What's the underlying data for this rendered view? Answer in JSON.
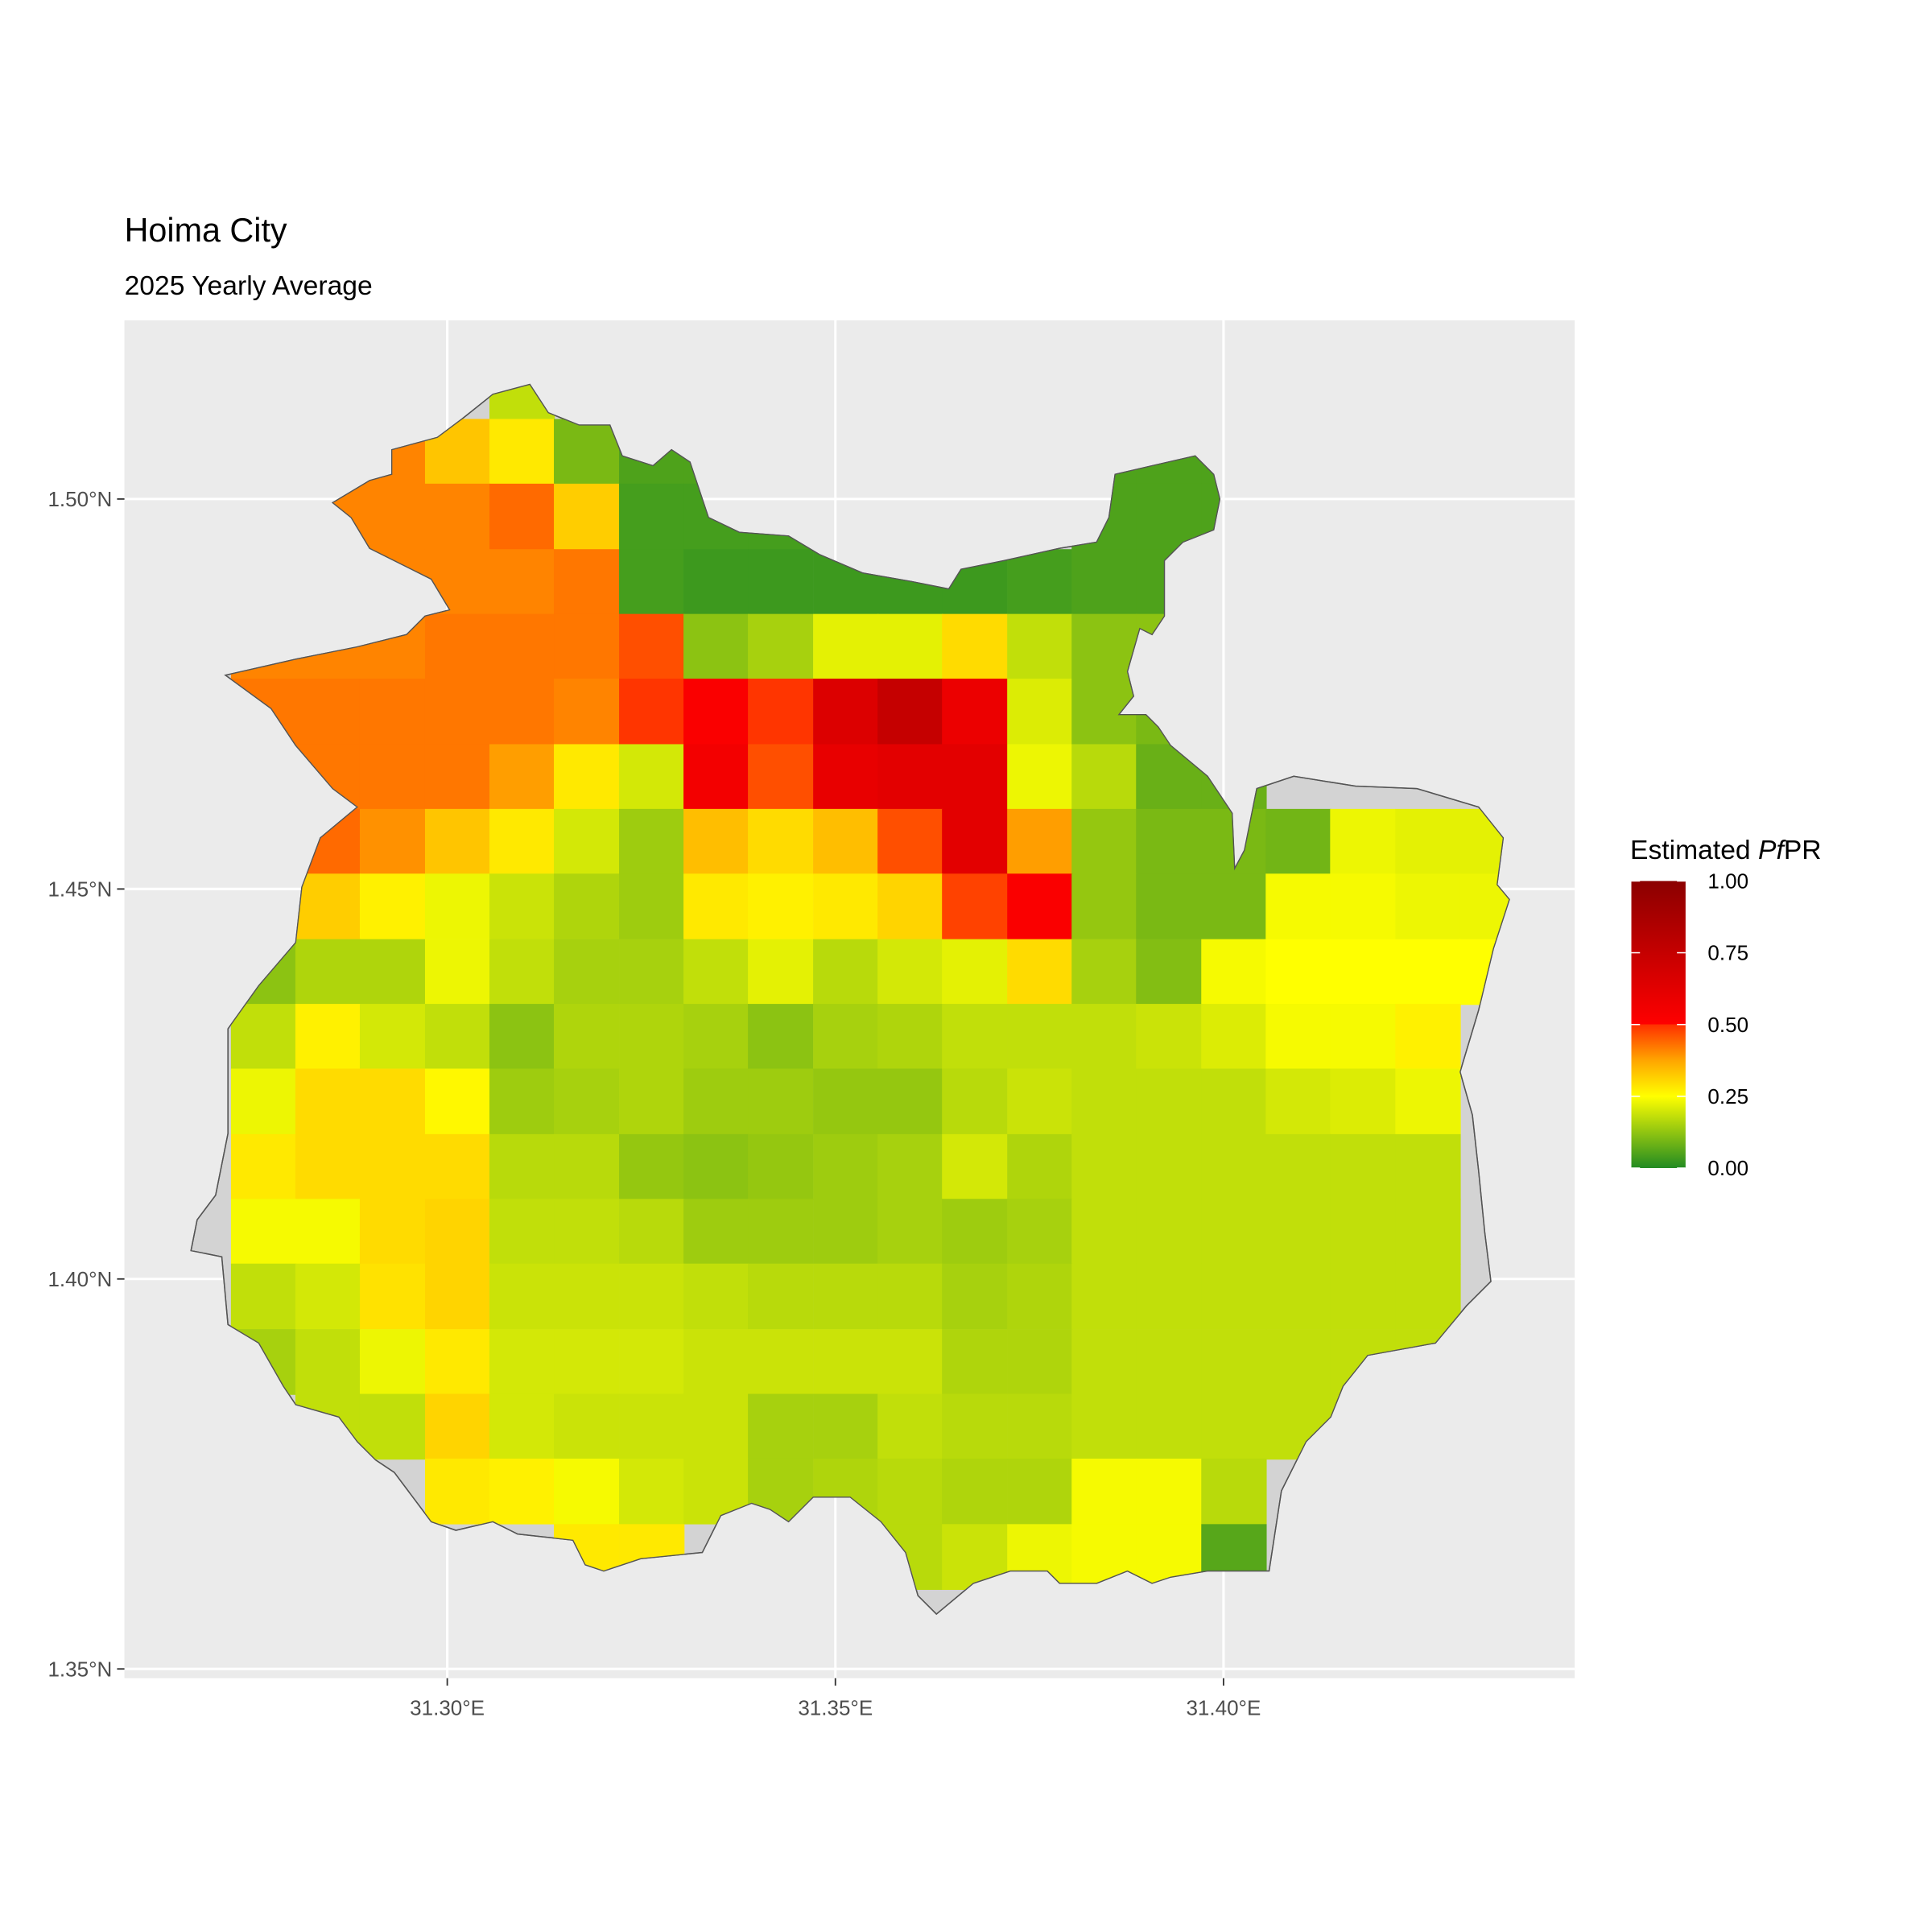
{
  "title": "Hoima City",
  "subtitle": "2025 Yearly Average",
  "legend": {
    "title_prefix": "Estimated ",
    "title_italic": "Pf",
    "title_suffix": "PR",
    "labels": [
      "1.00",
      "0.75",
      "0.50",
      "0.25",
      "0.00"
    ],
    "values": [
      1.0,
      0.75,
      0.5,
      0.25,
      0.0
    ],
    "colors": {
      "0": "#228B22",
      "0.25": "#FFFF00",
      "0.375": "#FFA500",
      "0.5": "#FF0000",
      "1": "#8B0000"
    }
  },
  "axes": {
    "x_ticks": [
      {
        "value": 31.3,
        "label": "31.30°E"
      },
      {
        "value": 31.35,
        "label": "31.35°E"
      },
      {
        "value": 31.4,
        "label": "31.40°E"
      }
    ],
    "y_ticks": [
      {
        "value": 1.5,
        "label": "1.50°N"
      },
      {
        "value": 1.45,
        "label": "1.45°N"
      },
      {
        "value": 1.4,
        "label": "1.40°N"
      },
      {
        "value": 1.35,
        "label": "1.35°N"
      }
    ],
    "panel_background": "#EBEBEB",
    "grid": true
  },
  "chart_data": {
    "type": "heatmap",
    "lon_centers": [
      31.2763,
      31.2846,
      31.2929,
      31.3013,
      31.3096,
      31.3179,
      31.3263,
      31.3346,
      31.3429,
      31.3513,
      31.3596,
      31.3679,
      31.3763,
      31.3846,
      31.3929,
      31.4013,
      31.4096,
      31.4179,
      31.4263,
      31.4346
    ],
    "lat_centers": [
      1.5144,
      1.5061,
      1.4978,
      1.4894,
      1.4811,
      1.4728,
      1.4644,
      1.4561,
      1.4478,
      1.4394,
      1.4311,
      1.4228,
      1.4144,
      1.4061,
      1.3978,
      1.3894,
      1.3811,
      1.3728,
      1.3644
    ],
    "values": [
      [
        null,
        null,
        null,
        null,
        0.18,
        null,
        null,
        null,
        null,
        null,
        null,
        null,
        null,
        null,
        null,
        null,
        null,
        null,
        null,
        null
      ],
      [
        null,
        null,
        0.4,
        0.33,
        0.28,
        0.1,
        0.05,
        0.05,
        null,
        null,
        null,
        null,
        null,
        0.05,
        0.05,
        0.05,
        null,
        null,
        null,
        null
      ],
      [
        null,
        0.4,
        0.4,
        0.4,
        0.42,
        0.32,
        0.04,
        0.04,
        0.04,
        null,
        null,
        null,
        null,
        0.05,
        0.05,
        0.05,
        null,
        null,
        null,
        null
      ],
      [
        null,
        0.4,
        0.4,
        0.4,
        0.4,
        0.41,
        0.04,
        0.03,
        0.03,
        0.03,
        0.03,
        0.03,
        0.04,
        0.05,
        0.05,
        null,
        null,
        null,
        null,
        null
      ],
      [
        0.4,
        0.4,
        0.4,
        0.41,
        0.41,
        0.41,
        0.44,
        0.12,
        0.15,
        0.22,
        0.22,
        0.3,
        0.18,
        0.12,
        0.12,
        null,
        null,
        null,
        null,
        null
      ],
      [
        0.41,
        0.41,
        0.41,
        0.41,
        0.41,
        0.4,
        0.46,
        0.52,
        0.46,
        0.65,
        0.75,
        0.58,
        0.21,
        0.12,
        0.1,
        null,
        null,
        null,
        null,
        null
      ],
      [
        null,
        0.41,
        0.41,
        0.41,
        0.38,
        0.28,
        0.2,
        0.55,
        0.44,
        0.6,
        0.62,
        0.62,
        0.23,
        0.17,
        0.08,
        0.08,
        null,
        null,
        null,
        null
      ],
      [
        null,
        0.42,
        0.39,
        0.33,
        0.28,
        0.2,
        0.14,
        0.34,
        0.3,
        0.34,
        0.44,
        0.62,
        0.38,
        0.13,
        0.1,
        0.1,
        0.09,
        0.23,
        0.22,
        0.22
      ],
      [
        null,
        0.32,
        0.27,
        0.23,
        0.19,
        0.16,
        0.14,
        0.28,
        0.27,
        0.28,
        0.31,
        0.45,
        0.52,
        0.13,
        0.1,
        0.1,
        0.24,
        0.24,
        0.23,
        0.23
      ],
      [
        0.12,
        0.16,
        0.16,
        0.23,
        0.18,
        0.15,
        0.15,
        0.18,
        0.22,
        0.17,
        0.2,
        0.22,
        0.3,
        0.15,
        0.11,
        0.24,
        0.25,
        0.25,
        0.25,
        0.25
      ],
      [
        0.18,
        0.27,
        0.2,
        0.18,
        0.12,
        0.16,
        0.16,
        0.15,
        0.12,
        0.15,
        0.16,
        0.18,
        0.18,
        0.18,
        0.19,
        0.21,
        0.24,
        0.24,
        0.27,
        null
      ],
      [
        0.23,
        0.3,
        0.3,
        0.26,
        0.14,
        0.15,
        0.16,
        0.14,
        0.14,
        0.13,
        0.13,
        0.17,
        0.19,
        0.18,
        0.18,
        0.18,
        0.2,
        0.21,
        0.23,
        null
      ],
      [
        0.28,
        0.3,
        0.3,
        0.3,
        0.17,
        0.17,
        0.13,
        0.12,
        0.13,
        0.14,
        0.15,
        0.2,
        0.16,
        0.18,
        0.18,
        0.18,
        0.18,
        0.18,
        0.18,
        null
      ],
      [
        0.24,
        0.24,
        0.3,
        0.31,
        0.18,
        0.18,
        0.17,
        0.14,
        0.14,
        0.14,
        0.15,
        0.14,
        0.15,
        0.18,
        0.18,
        0.18,
        0.18,
        0.18,
        0.18,
        null
      ],
      [
        0.18,
        0.2,
        0.29,
        0.31,
        0.19,
        0.19,
        0.19,
        0.18,
        0.17,
        0.17,
        0.17,
        0.15,
        0.16,
        0.18,
        0.18,
        0.18,
        0.18,
        0.18,
        0.18,
        null
      ],
      [
        0.15,
        0.18,
        0.23,
        0.28,
        0.2,
        0.2,
        0.2,
        0.19,
        0.19,
        0.19,
        0.19,
        0.16,
        0.16,
        0.18,
        0.18,
        0.18,
        0.18,
        0.18,
        0.18,
        null
      ],
      [
        null,
        0.18,
        0.18,
        0.31,
        0.2,
        0.19,
        0.19,
        0.19,
        0.15,
        0.15,
        0.18,
        0.17,
        0.17,
        0.18,
        0.18,
        0.18,
        0.18,
        0.18,
        null,
        null
      ],
      [
        null,
        null,
        null,
        0.28,
        0.27,
        0.24,
        0.2,
        0.19,
        0.15,
        0.16,
        0.17,
        0.16,
        0.16,
        0.24,
        0.24,
        0.17,
        null,
        null,
        null,
        null
      ],
      [
        null,
        null,
        null,
        null,
        null,
        0.28,
        0.28,
        null,
        null,
        null,
        0.17,
        0.19,
        0.23,
        0.24,
        0.24,
        0.06,
        null,
        null,
        null,
        null
      ]
    ],
    "xlim": [
      31.2596,
      31.4464
    ],
    "ylim": [
      1.3483,
      1.5225
    ]
  }
}
